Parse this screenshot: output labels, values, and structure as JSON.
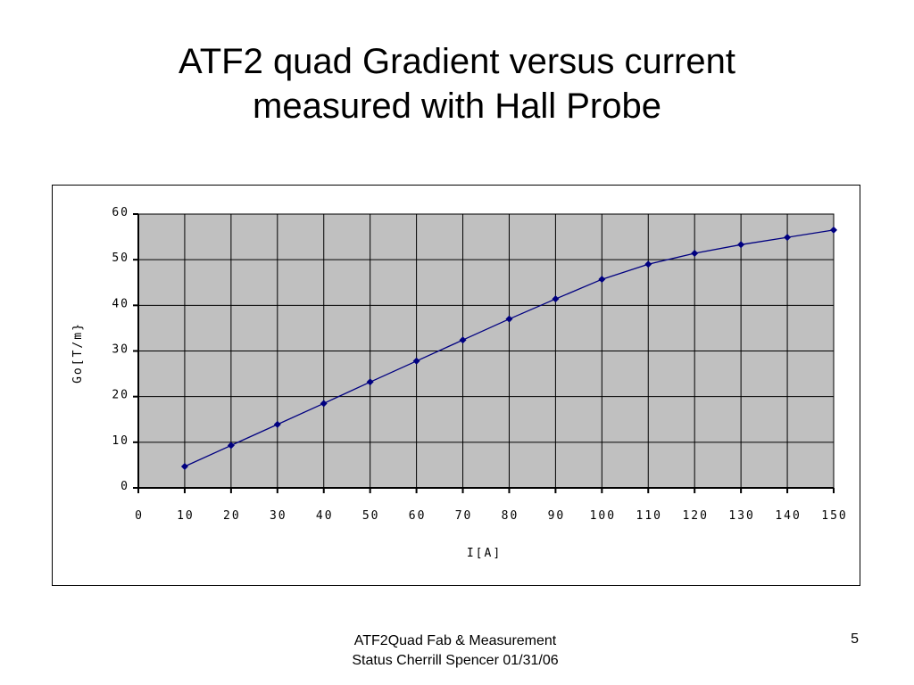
{
  "slide": {
    "title_line1": "ATF2 quad Gradient versus current",
    "title_line2": "measured with Hall Probe",
    "footer_line1": "ATF2Quad Fab & Measurement",
    "footer_line2": "Status Cherrill Spencer 01/31/06",
    "page_number": "5"
  },
  "chart_data": {
    "type": "line",
    "xlabel": "I[A]",
    "ylabel": "Go[T/m}",
    "xlim": [
      0,
      150
    ],
    "ylim": [
      0,
      60
    ],
    "x_ticks": [
      0,
      10,
      20,
      30,
      40,
      50,
      60,
      70,
      80,
      90,
      100,
      110,
      120,
      130,
      140,
      150
    ],
    "y_ticks": [
      0,
      10,
      20,
      30,
      40,
      50,
      60
    ],
    "grid": true,
    "plot_background": "#c0c0c0",
    "series_color": "#000080",
    "series": [
      {
        "x": [
          10,
          20,
          30,
          40,
          50,
          60,
          70,
          80,
          90,
          100,
          110,
          120,
          130,
          140,
          150
        ],
        "values": [
          4.7,
          9.3,
          13.9,
          18.5,
          23.2,
          27.8,
          32.4,
          37.0,
          41.4,
          45.7,
          49.0,
          51.4,
          53.3,
          54.9,
          56.5
        ]
      }
    ]
  }
}
